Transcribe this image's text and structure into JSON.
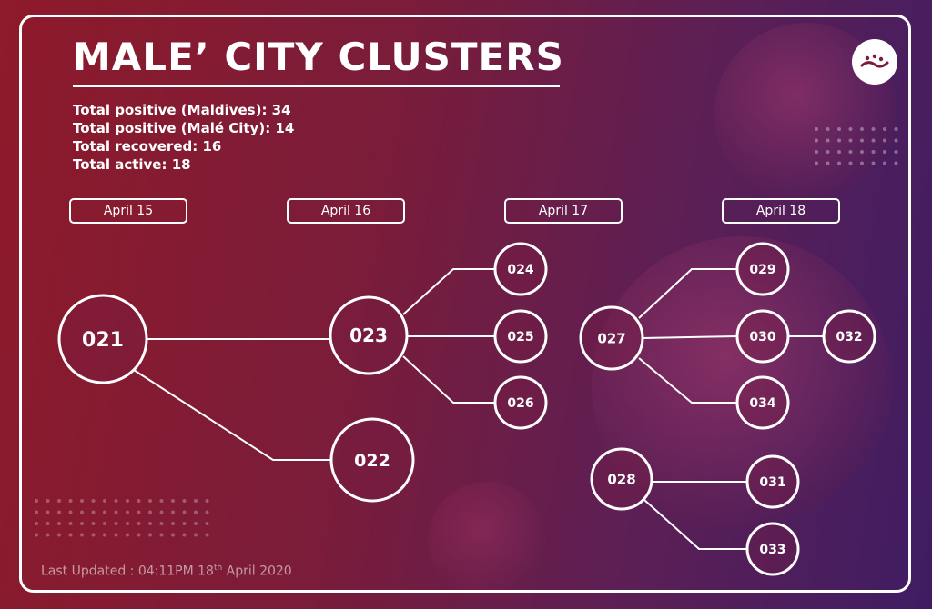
{
  "title": "MALE’ CITY CLUSTERS",
  "stats": [
    "Total positive (Maldives): 34",
    "Total positive (Malé City): 14",
    "Total recovered: 16",
    "Total active: 18"
  ],
  "dates": [
    "April 15",
    "April 16",
    "April 17",
    "April 18"
  ],
  "nodes": [
    "021",
    "022",
    "023",
    "024",
    "025",
    "026",
    "027",
    "028",
    "029",
    "030",
    "031",
    "032",
    "033",
    "034"
  ],
  "edges": [
    [
      "021",
      "023"
    ],
    [
      "021",
      "022"
    ],
    [
      "023",
      "024"
    ],
    [
      "023",
      "025"
    ],
    [
      "023",
      "026"
    ],
    [
      "027",
      "029"
    ],
    [
      "027",
      "030"
    ],
    [
      "027",
      "034"
    ],
    [
      "030",
      "032"
    ],
    [
      "028",
      "031"
    ],
    [
      "028",
      "033"
    ]
  ],
  "footer": {
    "prefix": "Last Updated : 04:11PM   18",
    "suffix_sup": "th",
    "suffix": " April 2020"
  },
  "colors": {
    "line": "#ffffff",
    "background_start": "#8e1a2a",
    "background_end": "#3f1d63"
  },
  "logo_icon": "brand-logo-icon"
}
